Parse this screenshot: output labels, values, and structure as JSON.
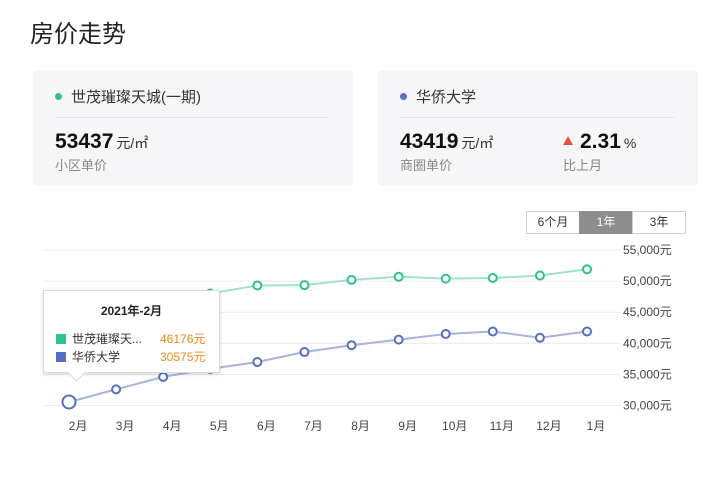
{
  "page": {
    "title": "房价走势"
  },
  "cards": [
    {
      "name": "世茂璀璨天城(一期)",
      "color": "#2bc48a",
      "metrics": [
        {
          "value": "53437",
          "unit": "元/㎡",
          "caption": "小区单价"
        }
      ]
    },
    {
      "name": "华侨大学",
      "color": "#5470c6",
      "metrics": [
        {
          "value": "43419",
          "unit": "元/㎡",
          "caption": "商圈单价"
        },
        {
          "value": "2.31",
          "unit": "%",
          "caption": "比上月",
          "trend": "up",
          "trend_color": "#e8553a"
        }
      ]
    }
  ],
  "range_tabs": [
    {
      "label": "6个月",
      "active": false
    },
    {
      "label": "1年",
      "active": true
    },
    {
      "label": "3年",
      "active": false
    }
  ],
  "tooltip": {
    "title": "2021年-2月",
    "rows": [
      {
        "name": "世茂璀璨天...",
        "value": "46176元",
        "color": "#2bc48a"
      },
      {
        "name": "华侨大学",
        "value": "30575元",
        "color": "#5470c6"
      }
    ]
  },
  "chart_data": {
    "type": "line",
    "categories": [
      "2月",
      "3月",
      "4月",
      "5月",
      "6月",
      "7月",
      "8月",
      "9月",
      "10月",
      "11月",
      "12月",
      "1月"
    ],
    "series": [
      {
        "name": "世茂璀璨天城(一期)",
        "color": "#2bc48a",
        "values": [
          46176,
          46600,
          47300,
          48000,
          49300,
          49350,
          50200,
          50700,
          50400,
          50500,
          50900,
          51900
        ]
      },
      {
        "name": "华侨大学",
        "color": "#5470c6",
        "values": [
          30575,
          32600,
          34600,
          35900,
          37000,
          38600,
          39700,
          40600,
          41500,
          41900,
          40900,
          41900
        ]
      }
    ],
    "y_ticks": [
      "30,000元",
      "35,000元",
      "40,000元",
      "45,000元",
      "50,000元",
      "55,000元"
    ],
    "ylim": [
      28000,
      55000
    ],
    "grid": "horizontal",
    "y_axis_position": "right",
    "highlight_index": 0
  }
}
